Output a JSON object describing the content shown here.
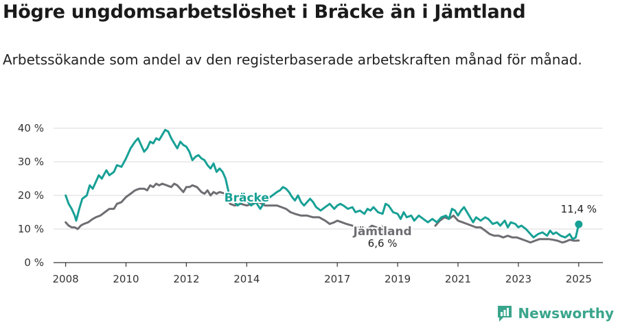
{
  "title": "Högre ungdomsarbetslöshet i Bräcke än i Jämtland",
  "subtitle": "Arbetssökande som andel av den registerbaserade arbetskraften månad för månad.",
  "brand": "Newsworthy",
  "colors": {
    "bracke": "#17a095",
    "jamtland": "#6d6d72",
    "grid": "#d9d9d9",
    "brand": "#3aa58c"
  },
  "chart_data": {
    "type": "line",
    "ylim": [
      0,
      40
    ],
    "yticks": [
      0,
      10,
      20,
      30,
      40
    ],
    "ytick_labels": [
      "0 %",
      "10 %",
      "20 %",
      "30 %",
      "40 %"
    ],
    "xlim": [
      2007.6,
      2025.8
    ],
    "xticks": [
      2008,
      2010,
      2012,
      2014,
      2017,
      2019,
      2021,
      2023,
      2025
    ],
    "xtick_labels": [
      "2008",
      "2010",
      "2012",
      "2014",
      "2017",
      "2019",
      "2021",
      "2023",
      "2025"
    ],
    "series": [
      {
        "name": "Bräcke",
        "end_label": "11,4 %",
        "points": [
          [
            2008.0,
            20
          ],
          [
            2008.1,
            17.5
          ],
          [
            2008.2,
            16
          ],
          [
            2008.3,
            14
          ],
          [
            2008.35,
            12.5
          ],
          [
            2008.45,
            16
          ],
          [
            2008.55,
            19
          ],
          [
            2008.7,
            20
          ],
          [
            2008.8,
            23
          ],
          [
            2008.9,
            22
          ],
          [
            2009.0,
            24
          ],
          [
            2009.1,
            26
          ],
          [
            2009.2,
            25
          ],
          [
            2009.35,
            27.5
          ],
          [
            2009.45,
            26
          ],
          [
            2009.6,
            27
          ],
          [
            2009.7,
            29
          ],
          [
            2009.85,
            28.5
          ],
          [
            2010.0,
            31
          ],
          [
            2010.15,
            34
          ],
          [
            2010.3,
            36
          ],
          [
            2010.4,
            37
          ],
          [
            2010.5,
            35
          ],
          [
            2010.6,
            33
          ],
          [
            2010.7,
            34
          ],
          [
            2010.8,
            36
          ],
          [
            2010.9,
            35.5
          ],
          [
            2011.0,
            37
          ],
          [
            2011.1,
            36.5
          ],
          [
            2011.2,
            38
          ],
          [
            2011.3,
            39.5
          ],
          [
            2011.4,
            39
          ],
          [
            2011.5,
            37
          ],
          [
            2011.6,
            35.5
          ],
          [
            2011.7,
            34
          ],
          [
            2011.8,
            36
          ],
          [
            2011.9,
            35
          ],
          [
            2012.0,
            34.5
          ],
          [
            2012.1,
            33
          ],
          [
            2012.2,
            30.5
          ],
          [
            2012.3,
            31.5
          ],
          [
            2012.4,
            32
          ],
          [
            2012.5,
            31
          ],
          [
            2012.6,
            30.5
          ],
          [
            2012.7,
            29
          ],
          [
            2012.8,
            28
          ],
          [
            2012.9,
            29.5
          ],
          [
            2013.0,
            27
          ],
          [
            2013.1,
            28
          ],
          [
            2013.2,
            27
          ],
          [
            2013.3,
            25
          ],
          [
            2013.4,
            21
          ],
          [
            2013.5,
            19
          ],
          [
            2013.7,
            17
          ],
          [
            2013.85,
            18
          ],
          [
            2014.0,
            18.5
          ],
          [
            2014.15,
            17
          ],
          [
            2014.3,
            18
          ],
          [
            2014.45,
            16
          ],
          [
            2014.55,
            17.5
          ],
          [
            2014.7,
            19
          ],
          [
            2014.85,
            20
          ],
          [
            2015.0,
            21
          ],
          [
            2015.1,
            21.5
          ],
          [
            2015.2,
            22.5
          ],
          [
            2015.3,
            22
          ],
          [
            2015.4,
            21
          ],
          [
            2015.5,
            19.5
          ],
          [
            2015.6,
            18.5
          ],
          [
            2015.7,
            20
          ],
          [
            2015.8,
            18
          ],
          [
            2015.9,
            17
          ],
          [
            2016.0,
            18
          ],
          [
            2016.1,
            19
          ],
          [
            2016.2,
            18
          ],
          [
            2016.3,
            16.5
          ],
          [
            2016.45,
            15.5
          ],
          [
            2016.6,
            16.5
          ],
          [
            2016.75,
            17.5
          ],
          [
            2016.9,
            16
          ],
          [
            2017.0,
            17
          ],
          [
            2017.1,
            17.5
          ],
          [
            2017.2,
            17
          ],
          [
            2017.35,
            16
          ],
          [
            2017.5,
            16.5
          ],
          [
            2017.6,
            15
          ],
          [
            2017.75,
            15.5
          ],
          [
            2017.9,
            14.5
          ],
          [
            2018.0,
            16
          ],
          [
            2018.1,
            15.5
          ],
          [
            2018.2,
            16.5
          ],
          [
            2018.35,
            15
          ],
          [
            2018.5,
            14.5
          ],
          [
            2018.6,
            17.5
          ],
          [
            2018.7,
            17
          ],
          [
            2018.85,
            15
          ],
          [
            2019.0,
            14.5
          ],
          [
            2019.1,
            13
          ],
          [
            2019.2,
            15
          ],
          [
            2019.3,
            13.5
          ],
          [
            2019.45,
            14
          ],
          [
            2019.55,
            12.5
          ],
          [
            2019.7,
            14
          ],
          [
            2019.85,
            13
          ],
          [
            2020.0,
            12
          ],
          [
            2020.15,
            13
          ],
          [
            2020.3,
            12
          ],
          [
            2020.45,
            13.5
          ],
          [
            2020.6,
            14
          ],
          [
            2020.7,
            13
          ],
          [
            2020.8,
            16
          ],
          [
            2020.9,
            15.5
          ],
          [
            2021.0,
            14
          ],
          [
            2021.1,
            15.5
          ],
          [
            2021.2,
            16.5
          ],
          [
            2021.3,
            15
          ],
          [
            2021.4,
            13.5
          ],
          [
            2021.5,
            12
          ],
          [
            2021.6,
            13.5
          ],
          [
            2021.75,
            12.5
          ],
          [
            2021.9,
            13.5
          ],
          [
            2022.0,
            13
          ],
          [
            2022.15,
            11.5
          ],
          [
            2022.3,
            12
          ],
          [
            2022.4,
            11
          ],
          [
            2022.55,
            12.5
          ],
          [
            2022.65,
            10.5
          ],
          [
            2022.75,
            12
          ],
          [
            2022.9,
            11.5
          ],
          [
            2023.0,
            10.5
          ],
          [
            2023.1,
            11
          ],
          [
            2023.25,
            10
          ],
          [
            2023.35,
            9
          ],
          [
            2023.5,
            7.5
          ],
          [
            2023.65,
            8.5
          ],
          [
            2023.8,
            9
          ],
          [
            2023.95,
            8
          ],
          [
            2024.05,
            9.5
          ],
          [
            2024.15,
            8.5
          ],
          [
            2024.25,
            9
          ],
          [
            2024.4,
            8
          ],
          [
            2024.55,
            7.5
          ],
          [
            2024.7,
            8.5
          ],
          [
            2024.8,
            7
          ],
          [
            2024.9,
            7.5
          ],
          [
            2025.0,
            11.4
          ]
        ]
      },
      {
        "name": "Jämtland",
        "end_label": "6,6 %",
        "points": [
          [
            2008.0,
            12
          ],
          [
            2008.1,
            11
          ],
          [
            2008.2,
            10.5
          ],
          [
            2008.3,
            10.5
          ],
          [
            2008.4,
            10
          ],
          [
            2008.5,
            11
          ],
          [
            2008.6,
            11.5
          ],
          [
            2008.75,
            12
          ],
          [
            2008.9,
            13
          ],
          [
            2009.0,
            13.5
          ],
          [
            2009.15,
            14
          ],
          [
            2009.3,
            15
          ],
          [
            2009.45,
            16
          ],
          [
            2009.6,
            16
          ],
          [
            2009.7,
            17.5
          ],
          [
            2009.85,
            18
          ],
          [
            2010.0,
            19.5
          ],
          [
            2010.15,
            20.5
          ],
          [
            2010.3,
            21.5
          ],
          [
            2010.45,
            22
          ],
          [
            2010.6,
            22
          ],
          [
            2010.7,
            21.5
          ],
          [
            2010.8,
            23
          ],
          [
            2010.9,
            22.5
          ],
          [
            2011.0,
            23.5
          ],
          [
            2011.1,
            23
          ],
          [
            2011.2,
            23.5
          ],
          [
            2011.35,
            23
          ],
          [
            2011.5,
            22.5
          ],
          [
            2011.6,
            23.5
          ],
          [
            2011.7,
            23
          ],
          [
            2011.8,
            22
          ],
          [
            2011.9,
            21
          ],
          [
            2012.0,
            22.5
          ],
          [
            2012.1,
            22.5
          ],
          [
            2012.2,
            23
          ],
          [
            2012.35,
            22.5
          ],
          [
            2012.5,
            21
          ],
          [
            2012.6,
            20.5
          ],
          [
            2012.7,
            21.5
          ],
          [
            2012.8,
            20
          ],
          [
            2012.9,
            21
          ],
          [
            2013.0,
            20.5
          ],
          [
            2013.1,
            21
          ],
          [
            2013.3,
            20.5
          ],
          [
            2013.45,
            17.5
          ],
          [
            2013.6,
            17
          ],
          [
            2013.8,
            17.5
          ],
          [
            2014.0,
            17
          ],
          [
            2014.2,
            17.5
          ],
          [
            2014.4,
            18
          ],
          [
            2014.6,
            17
          ],
          [
            2014.8,
            17
          ],
          [
            2015.0,
            17
          ],
          [
            2015.15,
            16.5
          ],
          [
            2015.3,
            16
          ],
          [
            2015.45,
            15
          ],
          [
            2015.6,
            14.5
          ],
          [
            2015.8,
            14
          ],
          [
            2016.0,
            14
          ],
          [
            2016.2,
            13.5
          ],
          [
            2016.4,
            13.5
          ],
          [
            2016.6,
            12.5
          ],
          [
            2016.75,
            11.5
          ],
          [
            2016.9,
            12
          ],
          [
            2017.0,
            12.5
          ],
          [
            2017.15,
            12
          ],
          [
            2017.3,
            11.5
          ],
          [
            2017.5,
            11
          ],
          [
            2017.65,
            10.5
          ],
          [
            2017.8,
            10.5
          ],
          [
            2018.0,
            10
          ],
          [
            2018.15,
            11
          ],
          [
            2018.3,
            10.5
          ],
          [
            2018.5,
            10
          ]
        ]
      },
      {
        "name": "Jämtland",
        "points": [
          [
            2020.25,
            11
          ],
          [
            2020.4,
            12.5
          ],
          [
            2020.55,
            13.5
          ],
          [
            2020.7,
            13
          ],
          [
            2020.85,
            14
          ],
          [
            2021.0,
            12.5
          ],
          [
            2021.15,
            12
          ],
          [
            2021.3,
            11.5
          ],
          [
            2021.45,
            11
          ],
          [
            2021.6,
            10.5
          ],
          [
            2021.75,
            10.5
          ],
          [
            2021.9,
            9.5
          ],
          [
            2022.05,
            8.5
          ],
          [
            2022.2,
            8
          ],
          [
            2022.35,
            8
          ],
          [
            2022.5,
            7.5
          ],
          [
            2022.65,
            8
          ],
          [
            2022.8,
            7.5
          ],
          [
            2022.95,
            7.5
          ],
          [
            2023.1,
            7
          ],
          [
            2023.25,
            6.5
          ],
          [
            2023.4,
            6
          ],
          [
            2023.55,
            6.5
          ],
          [
            2023.7,
            7
          ],
          [
            2023.85,
            7
          ],
          [
            2024.0,
            7
          ],
          [
            2024.15,
            6.8
          ],
          [
            2024.3,
            6.5
          ],
          [
            2024.45,
            6
          ],
          [
            2024.55,
            6.2
          ],
          [
            2024.7,
            6.8
          ],
          [
            2024.85,
            6.5
          ],
          [
            2025.0,
            6.6
          ]
        ]
      }
    ],
    "labels": [
      {
        "series": "Bräcke",
        "text": "Bräcke",
        "x": 2014.0,
        "y": 18.2
      },
      {
        "series": "Jämtland",
        "text": "Jämtland",
        "x": 2018.5,
        "y": 8.2
      }
    ]
  }
}
